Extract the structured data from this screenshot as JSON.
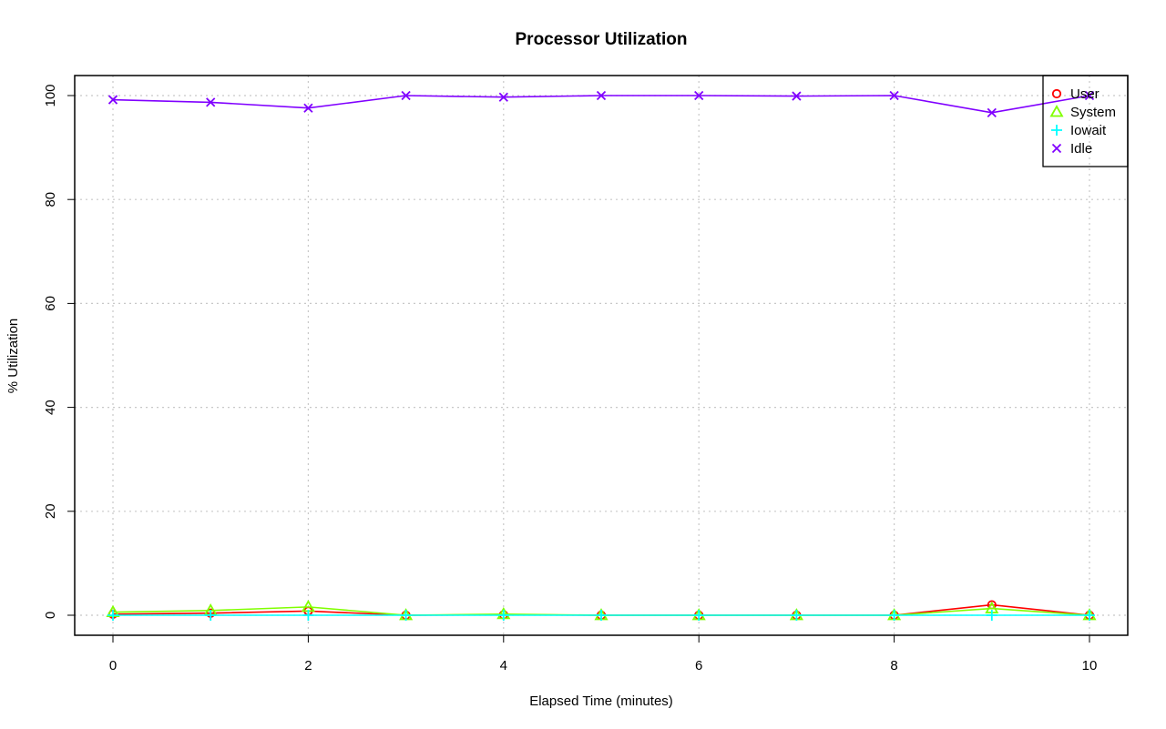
{
  "chart_data": {
    "type": "line",
    "title": "Processor Utilization",
    "xlabel": "Elapsed Time (minutes)",
    "ylabel": "% Utilization",
    "xlim": [
      0,
      10
    ],
    "ylim": [
      0,
      100
    ],
    "xticks": [
      0,
      2,
      4,
      6,
      8,
      10
    ],
    "yticks": [
      0,
      20,
      40,
      60,
      80,
      100
    ],
    "grid": true,
    "legend_position": "top-right",
    "x": [
      0,
      1,
      2,
      3,
      4,
      5,
      6,
      7,
      8,
      9,
      10
    ],
    "series": [
      {
        "name": "User",
        "color": "#ff0000",
        "marker": "circle",
        "values": [
          0.2,
          0.4,
          0.8,
          0.0,
          0.1,
          0.0,
          0.0,
          0.0,
          0.0,
          2.0,
          0.0
        ]
      },
      {
        "name": "System",
        "color": "#80ff00",
        "marker": "triangle",
        "values": [
          0.6,
          0.9,
          1.6,
          0.0,
          0.2,
          0.0,
          0.0,
          0.0,
          0.0,
          1.3,
          0.0
        ]
      },
      {
        "name": "Iowait",
        "color": "#00ffff",
        "marker": "plus",
        "values": [
          0.0,
          0.0,
          0.0,
          0.0,
          0.0,
          0.0,
          0.0,
          0.0,
          0.0,
          0.0,
          0.0
        ]
      },
      {
        "name": "Idle",
        "color": "#8000ff",
        "marker": "cross",
        "values": [
          99.2,
          98.7,
          97.6,
          100.0,
          99.7,
          100.0,
          100.0,
          99.9,
          100.0,
          96.7,
          100.0
        ]
      }
    ]
  }
}
